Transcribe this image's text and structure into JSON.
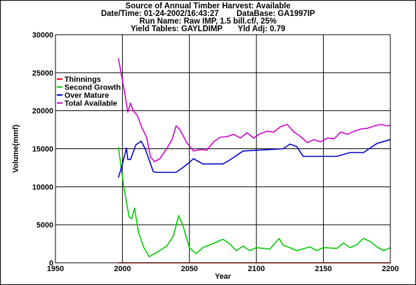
{
  "header": {
    "line1": "Source of Annual Timber Harvest: Available",
    "line2": "Date/Time: 01-24-2002/16:43:27        DataBase: GA1997IP",
    "line3": "Run Name: Raw IMP, 1.5 bill.cf/, 25%",
    "line4": "Yield Tables: GAYLDIMP       Yld Adj: 0.79"
  },
  "chart_data": {
    "type": "line",
    "xlabel": "Year",
    "ylabel": "Volume(mmf)",
    "xlim": [
      1950,
      2200
    ],
    "ylim": [
      0,
      30000
    ],
    "xticks": [
      1950,
      2000,
      2050,
      2100,
      2150,
      2200
    ],
    "yticks": [
      0,
      5000,
      10000,
      15000,
      20000,
      25000,
      30000
    ],
    "grid": true,
    "legend_position": "left",
    "series": [
      {
        "name": "Thinnings",
        "color": "#ff0000",
        "x": [
          1997,
          2200
        ],
        "y": [
          0,
          0
        ]
      },
      {
        "name": "Second Growth",
        "color": "#00cc00",
        "x": [
          1997,
          2001,
          2005,
          2007,
          2009,
          2012,
          2016,
          2020,
          2025,
          2033,
          2038,
          2042,
          2045,
          2050,
          2055,
          2060,
          2070,
          2075,
          2080,
          2085,
          2090,
          2095,
          2100,
          2110,
          2117,
          2120,
          2125,
          2130,
          2140,
          2145,
          2150,
          2160,
          2165,
          2170,
          2175,
          2180,
          2185,
          2190,
          2195,
          2200
        ],
        "y": [
          15200,
          10000,
          6000,
          5800,
          7200,
          4000,
          2000,
          800,
          1300,
          2200,
          3500,
          6200,
          5000,
          2000,
          1200,
          2000,
          2700,
          3100,
          2500,
          1600,
          2200,
          1600,
          2000,
          1800,
          3200,
          2300,
          2000,
          1600,
          2100,
          1600,
          2000,
          1900,
          2600,
          2000,
          2400,
          3200,
          2800,
          2100,
          1600,
          2000
        ]
      },
      {
        "name": "Over Mature",
        "color": "#0000cc",
        "x": [
          1997,
          2000,
          2003,
          2004,
          2006,
          2010,
          2014,
          2017,
          2020,
          2023,
          2025,
          2040,
          2045,
          2050,
          2053,
          2060,
          2075,
          2080,
          2090,
          2100,
          2120,
          2125,
          2130,
          2135,
          2140,
          2160,
          2170,
          2180,
          2190,
          2200
        ],
        "y": [
          11200,
          13000,
          15100,
          13600,
          13600,
          15500,
          16000,
          15000,
          13500,
          12000,
          11900,
          11900,
          12500,
          13200,
          13700,
          13000,
          13000,
          13500,
          14700,
          14800,
          15000,
          15600,
          15300,
          14000,
          14000,
          14000,
          14500,
          14500,
          15700,
          16200
        ]
      },
      {
        "name": "Total Available",
        "color": "#cc00cc",
        "x": [
          1997,
          2000,
          2002,
          2004,
          2006,
          2008,
          2011,
          2014,
          2018,
          2021,
          2024,
          2028,
          2033,
          2037,
          2040,
          2043,
          2048,
          2053,
          2058,
          2063,
          2068,
          2073,
          2078,
          2083,
          2088,
          2093,
          2098,
          2103,
          2108,
          2113,
          2118,
          2123,
          2128,
          2133,
          2138,
          2143,
          2148,
          2153,
          2158,
          2163,
          2168,
          2173,
          2178,
          2183,
          2188,
          2193,
          2198,
          2200
        ],
        "y": [
          26900,
          24000,
          22000,
          19800,
          21000,
          20000,
          19400,
          18000,
          16500,
          13900,
          13300,
          13700,
          15000,
          16200,
          18000,
          17500,
          15800,
          14700,
          14900,
          14800,
          15900,
          16500,
          16600,
          16900,
          16400,
          17100,
          16400,
          17000,
          17300,
          17200,
          17900,
          18200,
          17200,
          16600,
          15800,
          16200,
          15900,
          16400,
          16300,
          17200,
          16900,
          17300,
          17600,
          17700,
          18000,
          18200,
          18000,
          18100
        ]
      }
    ]
  }
}
